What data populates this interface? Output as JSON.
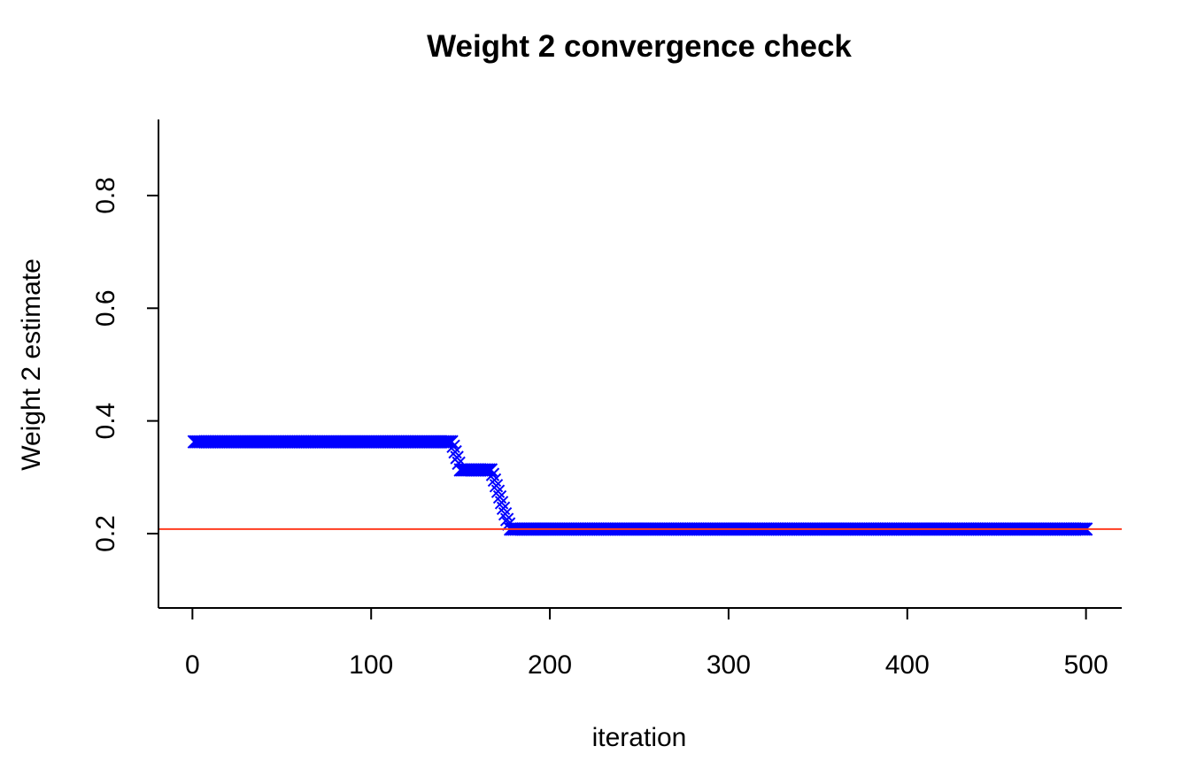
{
  "chart_data": {
    "type": "scatter",
    "title": "Weight 2 convergence check",
    "xlabel": "iteration",
    "ylabel": "Weight 2 estimate",
    "xlim": [
      -19,
      520
    ],
    "ylim": [
      0.068,
      0.935
    ],
    "xticks": [
      0,
      100,
      200,
      300,
      400,
      500
    ],
    "yticks": [
      0.2,
      0.4,
      0.6,
      0.8
    ],
    "xtick_labels": [
      "0",
      "100",
      "200",
      "300",
      "400",
      "500"
    ],
    "ytick_labels": [
      "0.2",
      "0.4",
      "0.6",
      "0.8"
    ],
    "grid": false,
    "marker": "x",
    "series": [
      {
        "color": "#0000ff",
        "segments": [
          {
            "x_from": 1,
            "x_to": 145,
            "y": 0.363
          },
          {
            "x_from": 146,
            "x_to": 146,
            "y": 0.355
          },
          {
            "x_from": 147,
            "x_to": 147,
            "y": 0.345
          },
          {
            "x_from": 148,
            "x_to": 148,
            "y": 0.335
          },
          {
            "x_from": 149,
            "x_to": 149,
            "y": 0.325
          },
          {
            "x_from": 150,
            "x_to": 167,
            "y": 0.313
          },
          {
            "x_from": 168,
            "x_to": 168,
            "y": 0.305
          },
          {
            "x_from": 169,
            "x_to": 169,
            "y": 0.295
          },
          {
            "x_from": 170,
            "x_to": 170,
            "y": 0.285
          },
          {
            "x_from": 171,
            "x_to": 171,
            "y": 0.275
          },
          {
            "x_from": 172,
            "x_to": 172,
            "y": 0.265
          },
          {
            "x_from": 173,
            "x_to": 173,
            "y": 0.255
          },
          {
            "x_from": 174,
            "x_to": 174,
            "y": 0.245
          },
          {
            "x_from": 175,
            "x_to": 175,
            "y": 0.235
          },
          {
            "x_from": 176,
            "x_to": 176,
            "y": 0.225
          },
          {
            "x_from": 177,
            "x_to": 177,
            "y": 0.217
          },
          {
            "x_from": 178,
            "x_to": 500,
            "y": 0.208
          }
        ]
      }
    ],
    "reference_line": {
      "y": 0.208,
      "color": "#ff3b1f"
    }
  }
}
